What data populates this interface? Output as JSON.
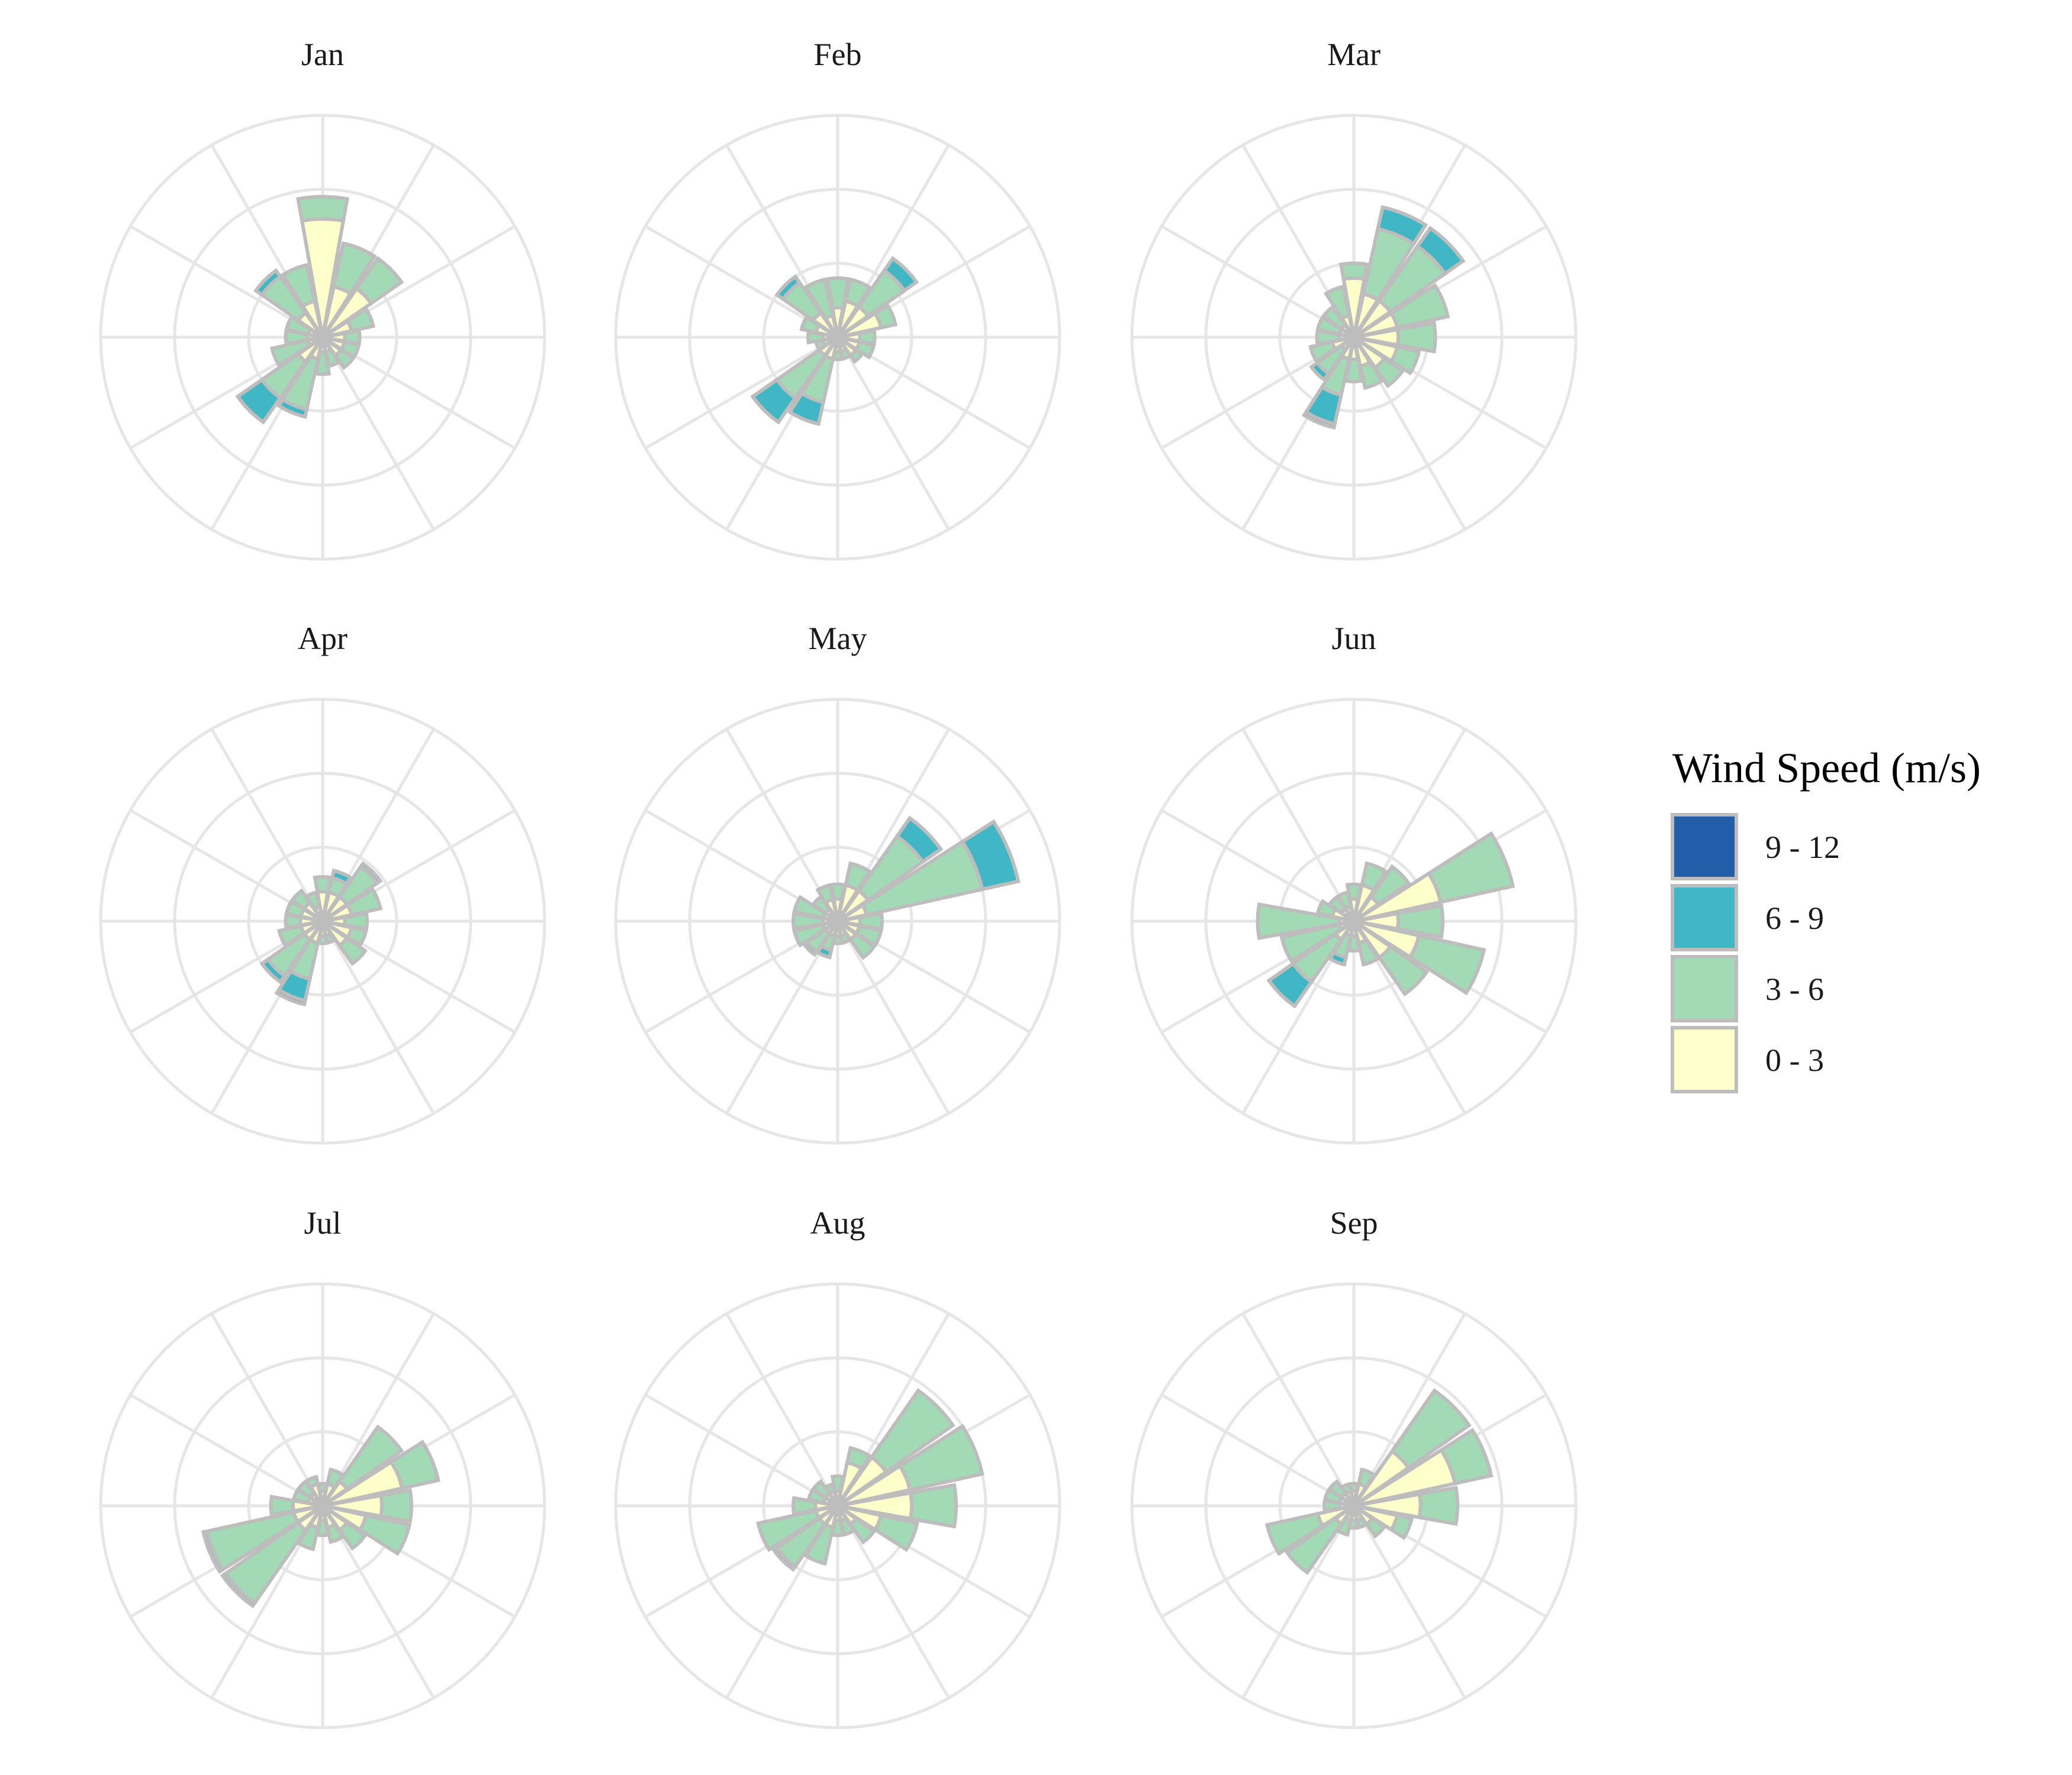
{
  "chart_data": {
    "type": "wind-rose (stacked polar bar, small multiples)",
    "direction_bins": 16,
    "radial_max": 3.0,
    "grid_rings": [
      1,
      2,
      3
    ],
    "legend": {
      "title": "Wind Speed (m/s)",
      "placement": "right",
      "entries": [
        {
          "label": "9 - 12",
          "color": "#225ea8"
        },
        {
          "label": "6 - 9",
          "color": "#41b6c4"
        },
        {
          "label": "3 - 6",
          "color": "#a1dab4"
        },
        {
          "label": "0 - 3",
          "color": "#ffffcc"
        }
      ]
    },
    "speed_classes": [
      "0 - 3",
      "3 - 6",
      "6 - 9",
      "9 - 12"
    ],
    "colors": [
      "#ffffcc",
      "#a1dab4",
      "#41b6c4",
      "#225ea8"
    ],
    "panels": [
      {
        "title": "Jan",
        "bins": [
          [
            1.6,
            0.3,
            0,
            0
          ],
          [
            0.7,
            0.6,
            0,
            0
          ],
          [
            0.8,
            0.5,
            0,
            0
          ],
          [
            0.4,
            0.3,
            0,
            0
          ],
          [
            0.3,
            0.2,
            0,
            0
          ],
          [
            0.3,
            0.2,
            0,
            0
          ],
          [
            0.3,
            0.2,
            0,
            0
          ],
          [
            0.2,
            0.2,
            0,
            0
          ],
          [
            0.2,
            0.3,
            0,
            0
          ],
          [
            0.3,
            0.7,
            0.1,
            0
          ],
          [
            0.4,
            0.6,
            0.4,
            0
          ],
          [
            0.2,
            0.5,
            0,
            0
          ],
          [
            0.2,
            0.3,
            0,
            0
          ],
          [
            0.2,
            0.3,
            0,
            0
          ],
          [
            0.4,
            0.6,
            0.1,
            0
          ],
          [
            0.5,
            0.5,
            0,
            0
          ]
        ]
      },
      {
        "title": "Feb",
        "bins": [
          [
            0.4,
            0.4,
            0,
            0
          ],
          [
            0.5,
            0.3,
            0,
            0
          ],
          [
            0.5,
            0.6,
            0.2,
            0
          ],
          [
            0.6,
            0.2,
            0,
            0
          ],
          [
            0.3,
            0.2,
            0,
            0
          ],
          [
            0.3,
            0.2,
            0,
            0
          ],
          [
            0.3,
            0.1,
            0,
            0
          ],
          [
            0.2,
            0.1,
            0,
            0
          ],
          [
            0.2,
            0.1,
            0,
            0
          ],
          [
            0.3,
            0.6,
            0.3,
            0
          ],
          [
            0.3,
            0.7,
            0.4,
            0
          ],
          [
            0.2,
            0.1,
            0,
            0
          ],
          [
            0.2,
            0.2,
            0,
            0
          ],
          [
            0.3,
            0.2,
            0,
            0
          ],
          [
            0.4,
            0.5,
            0.1,
            0
          ],
          [
            0.3,
            0.5,
            0,
            0
          ]
        ]
      },
      {
        "title": "Mar",
        "bins": [
          [
            0.8,
            0.2,
            0,
            0
          ],
          [
            0.6,
            0.9,
            0.3,
            0
          ],
          [
            0.6,
            0.9,
            0.3,
            0
          ],
          [
            0.6,
            0.7,
            0,
            0
          ],
          [
            0.6,
            0.5,
            0,
            0
          ],
          [
            0.6,
            0.3,
            0,
            0
          ],
          [
            0.5,
            0.3,
            0,
            0
          ],
          [
            0.4,
            0.3,
            0,
            0
          ],
          [
            0.3,
            0.3,
            0,
            0
          ],
          [
            0.3,
            0.5,
            0.4,
            0.05
          ],
          [
            0.2,
            0.4,
            0.1,
            0
          ],
          [
            0.3,
            0.3,
            0,
            0
          ],
          [
            0.2,
            0.3,
            0,
            0
          ],
          [
            0.2,
            0.3,
            0,
            0
          ],
          [
            0.2,
            0.3,
            0,
            0
          ],
          [
            0.3,
            0.4,
            0,
            0
          ]
        ]
      },
      {
        "title": "Apr",
        "bins": [
          [
            0.4,
            0.2,
            0,
            0
          ],
          [
            0.4,
            0.2,
            0.1,
            0
          ],
          [
            0.4,
            0.5,
            0.05,
            0
          ],
          [
            0.4,
            0.4,
            0,
            0
          ],
          [
            0.3,
            0.3,
            0,
            0
          ],
          [
            0.4,
            0.2,
            0,
            0
          ],
          [
            0.4,
            0.3,
            0,
            0
          ],
          [
            0.2,
            0.1,
            0,
            0
          ],
          [
            0.2,
            0.1,
            0,
            0
          ],
          [
            0.3,
            0.5,
            0.3,
            0.05
          ],
          [
            0.3,
            0.6,
            0.1,
            0
          ],
          [
            0.3,
            0.3,
            0,
            0
          ],
          [
            0.3,
            0.2,
            0,
            0
          ],
          [
            0.3,
            0.2,
            0,
            0
          ],
          [
            0.3,
            0.2,
            0,
            0
          ],
          [
            0.2,
            0.2,
            0,
            0
          ]
        ]
      },
      {
        "title": "May",
        "bins": [
          [
            0.3,
            0.2,
            0,
            0
          ],
          [
            0.5,
            0.3,
            0,
            0
          ],
          [
            0.5,
            0.9,
            0.3,
            0
          ],
          [
            0.4,
            1.6,
            0.5,
            0
          ],
          [
            0.3,
            0.3,
            0,
            0
          ],
          [
            0.3,
            0.3,
            0,
            0
          ],
          [
            0.3,
            0.3,
            0,
            0
          ],
          [
            0.2,
            0.1,
            0,
            0
          ],
          [
            0.2,
            0.1,
            0,
            0
          ],
          [
            0.2,
            0.2,
            0.1,
            0
          ],
          [
            0.2,
            0.3,
            0.05,
            0
          ],
          [
            0.2,
            0.4,
            0,
            0
          ],
          [
            0.2,
            0.4,
            0,
            0
          ],
          [
            0.2,
            0.4,
            0,
            0
          ],
          [
            0.2,
            0.2,
            0,
            0
          ],
          [
            0.3,
            0.2,
            0,
            0
          ]
        ]
      },
      {
        "title": "Jun",
        "bins": [
          [
            0.3,
            0.2,
            0,
            0
          ],
          [
            0.5,
            0.3,
            0,
            0
          ],
          [
            0.4,
            0.5,
            0,
            0
          ],
          [
            1.2,
            1.0,
            0,
            0
          ],
          [
            0.6,
            0.6,
            0,
            0
          ],
          [
            0.9,
            0.9,
            0,
            0
          ],
          [
            0.6,
            0.6,
            0,
            0
          ],
          [
            0.3,
            0.3,
            0,
            0
          ],
          [
            0.2,
            0.2,
            0,
            0
          ],
          [
            0.2,
            0.3,
            0.1,
            0
          ],
          [
            0.3,
            0.7,
            0.4,
            0
          ],
          [
            0.2,
            0.8,
            0,
            0
          ],
          [
            0.2,
            1.1,
            0,
            0
          ],
          [
            0.3,
            0.2,
            0,
            0
          ],
          [
            0.2,
            0.2,
            0,
            0
          ],
          [
            0.2,
            0.2,
            0,
            0
          ]
        ]
      },
      {
        "title": "Jul",
        "bins": [
          [
            0.2,
            0.1,
            0,
            0
          ],
          [
            0.3,
            0.2,
            0,
            0
          ],
          [
            0.4,
            0.9,
            0,
            0
          ],
          [
            1.1,
            0.5,
            0,
            0
          ],
          [
            0.8,
            0.4,
            0,
            0
          ],
          [
            0.6,
            0.6,
            0,
            0
          ],
          [
            0.4,
            0.3,
            0,
            0
          ],
          [
            0.3,
            0.2,
            0,
            0
          ],
          [
            0.2,
            0.2,
            0,
            0
          ],
          [
            0.3,
            0.3,
            0,
            0
          ],
          [
            0.4,
            1.2,
            0.05,
            0
          ],
          [
            0.4,
            1.2,
            0.05,
            0
          ],
          [
            0.4,
            0.3,
            0,
            0
          ],
          [
            0.2,
            0.2,
            0,
            0
          ],
          [
            0.2,
            0.2,
            0,
            0
          ],
          [
            0.3,
            0.1,
            0,
            0
          ]
        ]
      },
      {
        "title": "Aug",
        "bins": [
          [
            0.2,
            0.2,
            0,
            0
          ],
          [
            0.6,
            0.2,
            0,
            0
          ],
          [
            0.8,
            1.1,
            0,
            0
          ],
          [
            1.0,
            1.0,
            0,
            0
          ],
          [
            1.0,
            0.6,
            0,
            0
          ],
          [
            0.6,
            0.5,
            0,
            0
          ],
          [
            0.3,
            0.3,
            0,
            0
          ],
          [
            0.2,
            0.2,
            0,
            0
          ],
          [
            0.2,
            0.2,
            0,
            0
          ],
          [
            0.3,
            0.5,
            0,
            0
          ],
          [
            0.3,
            0.7,
            0.05,
            0
          ],
          [
            0.3,
            0.8,
            0,
            0
          ],
          [
            0.3,
            0.3,
            0,
            0
          ],
          [
            0.2,
            0.2,
            0,
            0
          ],
          [
            0.2,
            0.2,
            0,
            0
          ],
          [
            0.2,
            0.1,
            0,
            0
          ]
        ]
      },
      {
        "title": "Sep",
        "bins": [
          [
            0.2,
            0.1,
            0,
            0
          ],
          [
            0.3,
            0.2,
            0,
            0
          ],
          [
            0.9,
            1.0,
            0,
            0
          ],
          [
            1.4,
            0.5,
            0,
            0
          ],
          [
            0.9,
            0.5,
            0,
            0
          ],
          [
            0.6,
            0.2,
            0,
            0
          ],
          [
            0.3,
            0.2,
            0,
            0
          ],
          [
            0.2,
            0.1,
            0,
            0
          ],
          [
            0.2,
            0.1,
            0,
            0
          ],
          [
            0.2,
            0.2,
            0,
            0
          ],
          [
            0.3,
            0.8,
            0,
            0
          ],
          [
            0.5,
            0.7,
            0,
            0
          ],
          [
            0.2,
            0.2,
            0,
            0
          ],
          [
            0.2,
            0.2,
            0,
            0
          ],
          [
            0.2,
            0.2,
            0,
            0
          ],
          [
            0.2,
            0.1,
            0,
            0
          ]
        ]
      }
    ]
  }
}
